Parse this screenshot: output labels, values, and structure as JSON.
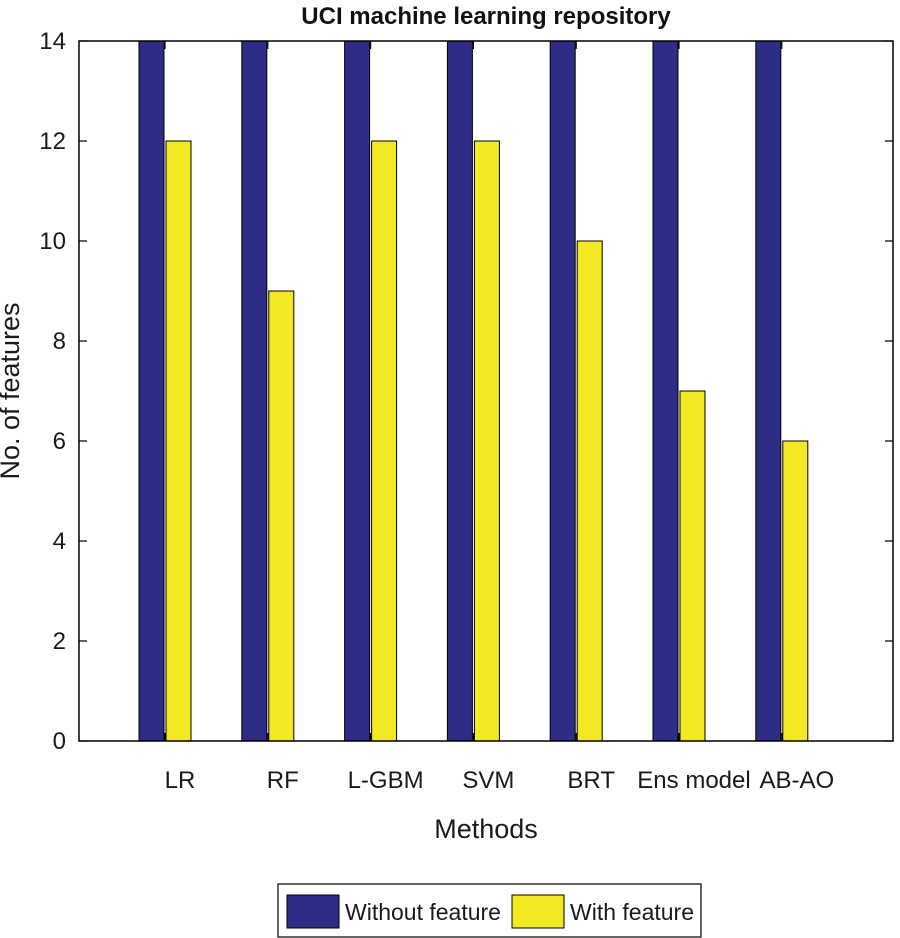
{
  "chart_data": {
    "type": "bar",
    "title": "UCI machine learning repository",
    "xlabel": "Methods",
    "ylabel": "No. of features",
    "categories": [
      "LR",
      "RF",
      "L-GBM",
      "SVM",
      "BRT",
      "Ens model",
      "AB-AO"
    ],
    "ylim": [
      0,
      14
    ],
    "yticks": [
      0,
      2,
      4,
      6,
      8,
      10,
      12,
      14
    ],
    "grid": false,
    "legend_position": "bottom-center",
    "series": [
      {
        "name": "Without feature",
        "color": "#2e2d86",
        "values": [
          14,
          14,
          14,
          14,
          14,
          14,
          14
        ]
      },
      {
        "name": "With feature",
        "color": "#f2e824",
        "values": [
          12,
          9,
          12,
          12,
          10,
          7,
          6
        ]
      }
    ]
  }
}
